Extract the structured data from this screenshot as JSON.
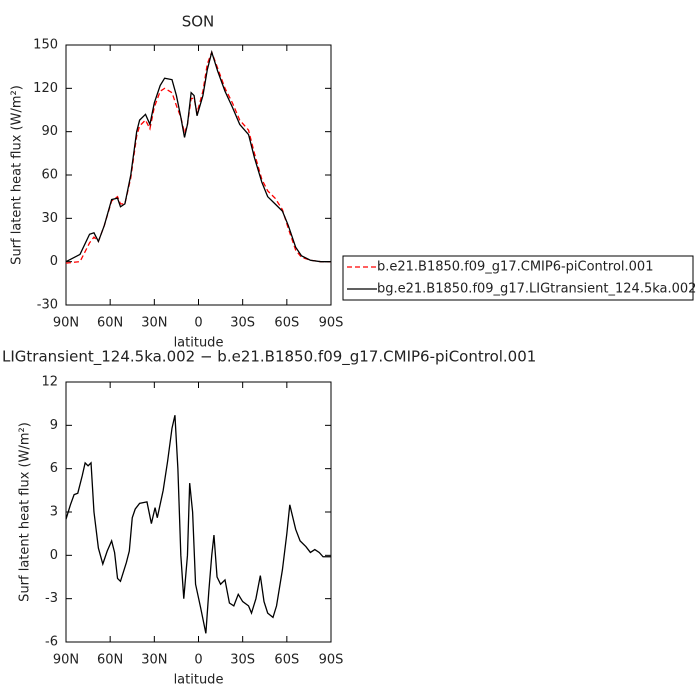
{
  "chart_data": [
    {
      "type": "line",
      "title": "SON",
      "xlabel": "latitude",
      "ylabel": "Surf latent heat flux (W/m²)",
      "xlim": [
        90,
        -90
      ],
      "xticks": [
        {
          "value": 90,
          "label": "90N"
        },
        {
          "value": 60,
          "label": "60N"
        },
        {
          "value": 30,
          "label": "30N"
        },
        0,
        {
          "value": -30,
          "label": "30S"
        },
        {
          "value": -60,
          "label": "60S"
        },
        {
          "value": -90,
          "label": "90S"
        }
      ],
      "ylim": [
        -30,
        150
      ],
      "yticks": [
        -30,
        0,
        30,
        60,
        90,
        120,
        150
      ],
      "legend": "right",
      "x": [
        90,
        80.5,
        74,
        71,
        68,
        64,
        59,
        55,
        53,
        50,
        46,
        42,
        40,
        36,
        33,
        30,
        26,
        23,
        18,
        15,
        12,
        9.5,
        7.5,
        5,
        3,
        1,
        -3,
        -6,
        -9,
        -13,
        -18,
        -23,
        -28,
        -34,
        -38,
        -43,
        -47,
        -52,
        -57,
        -61,
        -66,
        -70,
        -76,
        -83,
        -90
      ],
      "series": [
        {
          "name": "b.e21.B1850.f09_g17.CMIP6-piControl.001",
          "color": "#ff0000",
          "line_style": "dashed",
          "values": [
            -1,
            0,
            13,
            17,
            14,
            25,
            42,
            45,
            40,
            40,
            58,
            87,
            94,
            98,
            92,
            107,
            118,
            120,
            117,
            108,
            100,
            89,
            95,
            113,
            113,
            103,
            118,
            137,
            145,
            134,
            120,
            110,
            98,
            91,
            75,
            57,
            49,
            44,
            36,
            23,
            8,
            3,
            1,
            0,
            0
          ]
        },
        {
          "name": "bg.e21.B1850.f09_g17.LIGtransient_124.5ka.002",
          "color": "#000000",
          "line_style": "solid",
          "values": [
            0,
            5,
            19,
            20,
            14,
            25,
            43,
            44,
            38,
            40,
            60,
            90,
            98,
            102,
            95,
            110,
            122,
            127,
            126,
            115,
            100,
            86,
            95,
            117,
            115,
            101,
            115,
            133,
            145,
            132,
            118,
            107,
            95,
            88,
            72,
            55,
            45,
            40,
            35,
            25,
            10,
            4,
            1,
            0,
            0
          ]
        }
      ]
    },
    {
      "type": "line",
      "title": "LIGtransient_124.5ka.002 − b.e21.B1850.f09_g17.CMIP6-piControl.001",
      "xlabel": "latitude",
      "ylabel": "Surf latent heat flux (W/m²)",
      "xlim": [
        90,
        -90
      ],
      "xticks": [
        {
          "value": 90,
          "label": "90N"
        },
        {
          "value": 60,
          "label": "60N"
        },
        {
          "value": 30,
          "label": "30N"
        },
        0,
        {
          "value": -30,
          "label": "30S"
        },
        {
          "value": -60,
          "label": "60S"
        },
        {
          "value": -90,
          "label": "90S"
        }
      ],
      "ylim": [
        -6,
        12
      ],
      "yticks": [
        -6,
        -3,
        0,
        3,
        6,
        9,
        12
      ],
      "x": [
        90,
        87,
        84.5,
        82,
        79,
        77,
        75,
        73,
        71,
        68,
        65,
        62,
        59,
        57,
        55,
        53,
        49,
        47,
        45,
        43,
        40,
        35,
        32,
        29.5,
        28,
        24,
        21,
        18,
        16,
        14,
        12,
        10,
        7.5,
        6,
        4,
        2,
        -1.4,
        -5,
        -7,
        -9,
        -10.5,
        -12.6,
        -15,
        -18,
        -21,
        -24,
        -27,
        -30,
        -34,
        -36,
        -39,
        -42,
        -44.5,
        -47,
        -50.6,
        -53,
        -57,
        -60,
        -62,
        -66,
        -69,
        -73,
        -76,
        -79,
        -82,
        -84.6,
        -90
      ],
      "series": [
        {
          "color": "#000000",
          "line_style": "solid",
          "values": [
            2.5,
            3.5,
            4.2,
            4.3,
            5.5,
            6.4,
            6.2,
            6.4,
            3,
            0.5,
            -0.6,
            0.3,
            1,
            0.2,
            -1.6,
            -1.8,
            -0.5,
            0.3,
            2.6,
            3.2,
            3.6,
            3.7,
            2.2,
            3.3,
            2.6,
            4.5,
            6.5,
            8.8,
            9.7,
            6,
            0,
            -3,
            0,
            5,
            3,
            -2,
            -3.6,
            -5.4,
            -2.5,
            0,
            1.4,
            -1.5,
            -2,
            -1.7,
            -3.3,
            -3.5,
            -2.7,
            -3.2,
            -3.5,
            -4,
            -3,
            -1.4,
            -3.2,
            -4,
            -4.3,
            -3.5,
            -1,
            1.5,
            3.5,
            1.8,
            1,
            0.6,
            0.2,
            0.4,
            0.2,
            -0.1,
            -0.1
          ]
        }
      ]
    }
  ]
}
